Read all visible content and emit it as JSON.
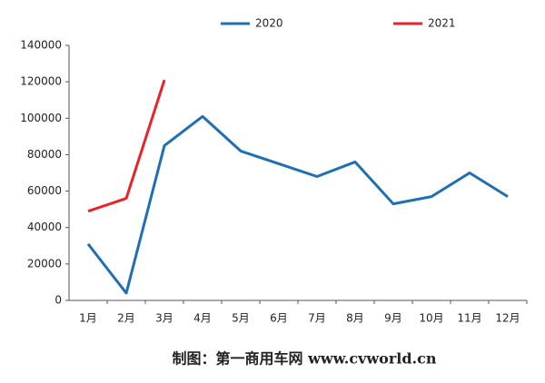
{
  "chart_data": {
    "type": "line",
    "categories": [
      "1月",
      "2月",
      "3月",
      "4月",
      "5月",
      "6月",
      "7月",
      "8月",
      "9月",
      "10月",
      "11月",
      "12月"
    ],
    "series": [
      {
        "name": "2020",
        "color": "#1f6fb5",
        "values": [
          31000,
          4000,
          85000,
          101000,
          82000,
          75000,
          68000,
          76000,
          53000,
          57000,
          70000,
          57000
        ]
      },
      {
        "name": "2021",
        "color": "#e8232a",
        "values": [
          49000,
          56000,
          121000,
          null,
          null,
          null,
          null,
          null,
          null,
          null,
          null,
          null
        ]
      }
    ],
    "ylim": [
      0,
      140000
    ],
    "yticks": [
      0,
      20000,
      40000,
      60000,
      80000,
      100000,
      120000,
      140000
    ],
    "grid": false,
    "legend": "top",
    "caption": "制图：第一商用车网 www.cvworld.cn"
  }
}
